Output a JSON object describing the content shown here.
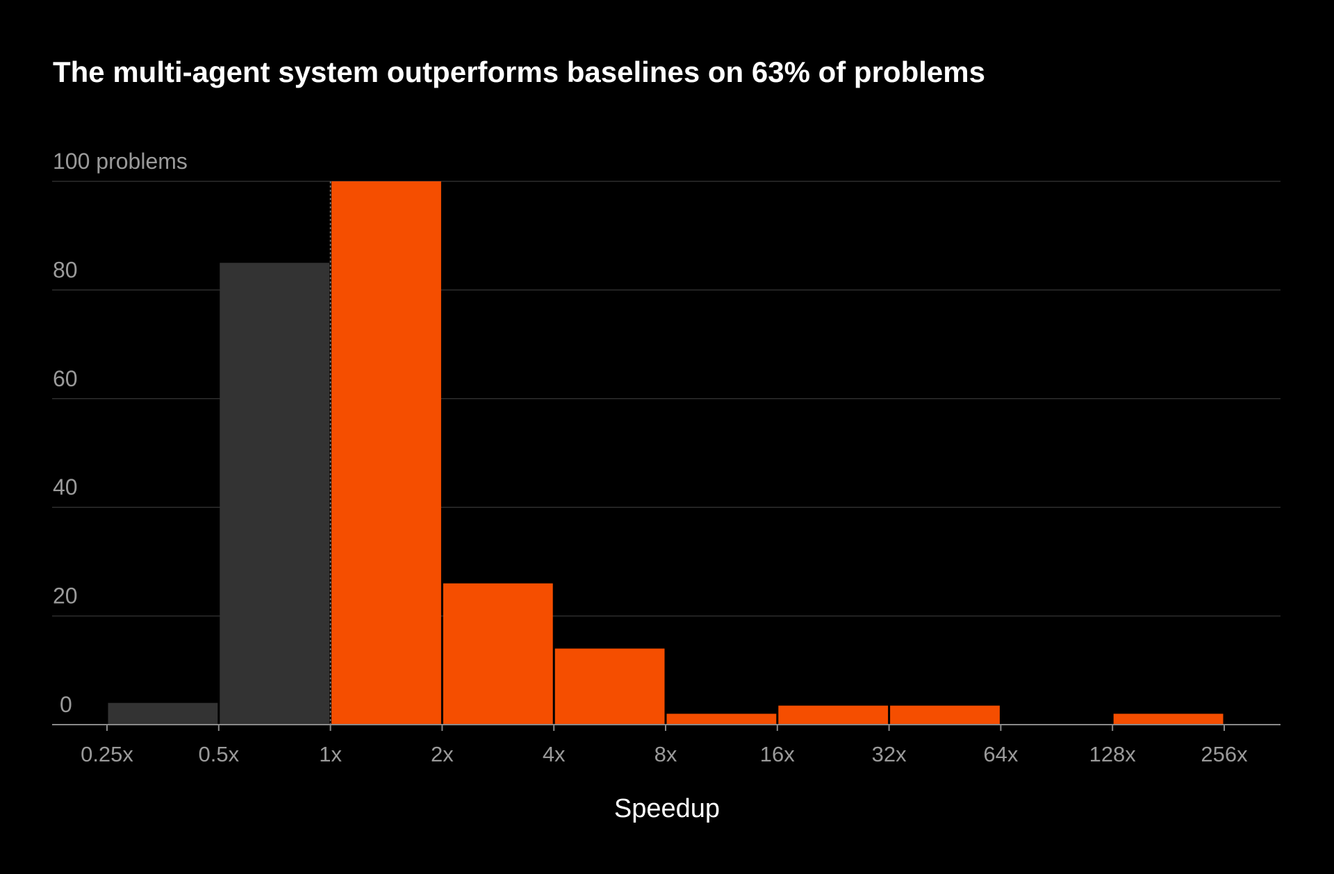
{
  "chart_data": {
    "type": "bar",
    "title": "The multi-agent system outperforms baselines on 63% of problems",
    "xlabel": "Speedup",
    "ylabel": "",
    "y_unit": "problems",
    "ylim": [
      0,
      100
    ],
    "yticks": [
      0,
      20,
      40,
      60,
      80,
      100
    ],
    "ytick_labels": [
      "0",
      "20",
      "40",
      "60",
      "80",
      "100 problems"
    ],
    "x_scale": "log2",
    "xticks": [
      0.25,
      0.5,
      1,
      2,
      4,
      8,
      16,
      32,
      64,
      128,
      256
    ],
    "xtick_labels": [
      "0.25x",
      "0.5x",
      "1x",
      "2x",
      "4x",
      "8x",
      "16x",
      "32x",
      "64x",
      "128x",
      "256x"
    ],
    "grid": true,
    "reference_line_x": 1,
    "bins": [
      {
        "from": 0.25,
        "to": 0.5,
        "value": 4,
        "group": "slower"
      },
      {
        "from": 0.5,
        "to": 1,
        "value": 85,
        "group": "slower"
      },
      {
        "from": 1,
        "to": 2,
        "value": 100,
        "group": "faster"
      },
      {
        "from": 2,
        "to": 4,
        "value": 26,
        "group": "faster"
      },
      {
        "from": 4,
        "to": 8,
        "value": 14,
        "group": "faster"
      },
      {
        "from": 8,
        "to": 16,
        "value": 2,
        "group": "faster"
      },
      {
        "from": 16,
        "to": 32,
        "value": 3.5,
        "group": "faster"
      },
      {
        "from": 32,
        "to": 64,
        "value": 3.5,
        "group": "faster"
      },
      {
        "from": 64,
        "to": 128,
        "value": 0,
        "group": "faster"
      },
      {
        "from": 128,
        "to": 256,
        "value": 2,
        "group": "faster"
      }
    ],
    "colors": {
      "background": "#000000",
      "slower": "#333333",
      "faster": "#f54e00",
      "grid": "#2e2e2e",
      "axis": "#8a8a8a",
      "reference_line": "#8a8a8a"
    }
  }
}
